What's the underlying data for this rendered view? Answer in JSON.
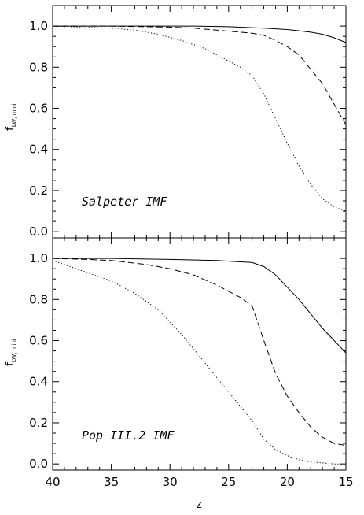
{
  "chart_data": [
    {
      "type": "line",
      "panel_label": "Salpeter IMF",
      "ylabel": "f",
      "ylabel_subscript": "LW, mini",
      "xlim": [
        40,
        15
      ],
      "ylim": [
        -0.03,
        1.1
      ],
      "yticks": [
        "0.0",
        "0.2",
        "0.4",
        "0.6",
        "0.8",
        "1.0"
      ],
      "ytick_values": [
        0.0,
        0.2,
        0.4,
        0.6,
        0.8,
        1.0
      ],
      "series": [
        {
          "style": "solid",
          "x": [
            40,
            35,
            30,
            28,
            25,
            22,
            20,
            19,
            18,
            17,
            16,
            15
          ],
          "y": [
            1.0,
            1.0,
            1.0,
            1.0,
            0.997,
            0.99,
            0.983,
            0.977,
            0.97,
            0.96,
            0.943,
            0.92
          ]
        },
        {
          "style": "dashed",
          "x": [
            40,
            35,
            30,
            28,
            26,
            24,
            23,
            22,
            21,
            20,
            19,
            18,
            17,
            16,
            15
          ],
          "y": [
            1.0,
            1.0,
            0.995,
            0.99,
            0.98,
            0.97,
            0.965,
            0.955,
            0.93,
            0.9,
            0.86,
            0.79,
            0.72,
            0.62,
            0.52
          ]
        },
        {
          "style": "dotted",
          "x": [
            40,
            35,
            33,
            31,
            29,
            27,
            25,
            24,
            23,
            22,
            21,
            20,
            19,
            18,
            17,
            16,
            15
          ],
          "y": [
            1.0,
            0.99,
            0.98,
            0.96,
            0.93,
            0.89,
            0.83,
            0.8,
            0.76,
            0.67,
            0.55,
            0.43,
            0.32,
            0.23,
            0.16,
            0.12,
            0.1
          ]
        }
      ]
    },
    {
      "type": "line",
      "panel_label": "Pop III.2 IMF",
      "ylabel": "f",
      "ylabel_subscript": "LW, mini",
      "xlabel": "z",
      "xlim": [
        40,
        15
      ],
      "ylim": [
        -0.03,
        1.1
      ],
      "xticks": [
        "40",
        "35",
        "30",
        "25",
        "20",
        "15"
      ],
      "xtick_values": [
        40,
        35,
        30,
        25,
        20,
        15
      ],
      "yticks": [
        "0.0",
        "0.2",
        "0.4",
        "0.6",
        "0.8",
        "1.0"
      ],
      "ytick_values": [
        0.0,
        0.2,
        0.4,
        0.6,
        0.8,
        1.0
      ],
      "series": [
        {
          "style": "solid",
          "x": [
            40,
            35,
            30,
            26,
            24,
            23,
            22,
            21,
            20,
            19,
            18,
            17,
            16,
            15
          ],
          "y": [
            1.0,
            1.0,
            0.995,
            0.99,
            0.983,
            0.98,
            0.96,
            0.92,
            0.86,
            0.8,
            0.73,
            0.66,
            0.6,
            0.54
          ]
        },
        {
          "style": "dashed",
          "x": [
            40,
            37,
            35,
            32,
            30,
            28,
            26,
            25,
            24,
            23,
            22,
            21,
            20,
            19,
            18,
            17,
            16,
            15
          ],
          "y": [
            1.0,
            0.995,
            0.99,
            0.97,
            0.95,
            0.92,
            0.87,
            0.84,
            0.81,
            0.77,
            0.6,
            0.44,
            0.33,
            0.25,
            0.18,
            0.13,
            0.1,
            0.09
          ]
        },
        {
          "style": "dotted",
          "x": [
            40,
            39,
            37,
            35,
            33,
            31,
            29,
            27,
            25,
            24,
            23,
            22,
            21,
            20,
            19,
            18,
            17,
            16,
            15
          ],
          "y": [
            0.99,
            0.97,
            0.93,
            0.89,
            0.83,
            0.75,
            0.63,
            0.49,
            0.35,
            0.28,
            0.21,
            0.12,
            0.07,
            0.04,
            0.02,
            0.01,
            0.005,
            0.0,
            0.0
          ]
        }
      ]
    }
  ]
}
